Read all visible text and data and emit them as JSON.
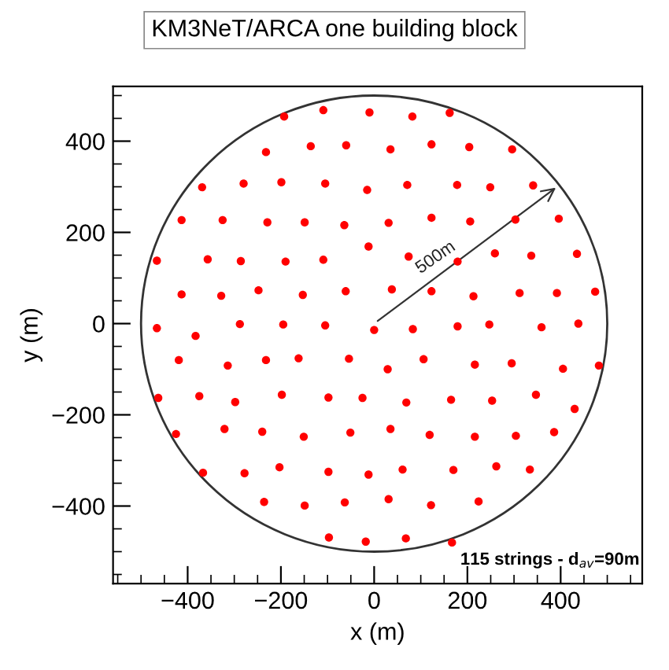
{
  "chart_data": {
    "type": "scatter",
    "title": "KM3NeT/ARCA one building block",
    "xlabel": "x (m)",
    "ylabel": "y (m)",
    "x": [
      -193,
      -109,
      -10,
      82,
      162,
      -232,
      -136,
      -60,
      35,
      123,
      204,
      296,
      -369,
      -280,
      -199,
      -105,
      -15,
      71,
      178,
      249,
      341,
      -413,
      -325,
      -229,
      -149,
      -64,
      31,
      123,
      206,
      303,
      396,
      -12,
      -466,
      -357,
      -286,
      -190,
      -109,
      74,
      179,
      259,
      337,
      435,
      -413,
      -328,
      -248,
      -153,
      -61,
      38,
      123,
      213,
      312,
      392,
      474,
      -466,
      -383,
      -288,
      -195,
      -105,
      0,
      83,
      179,
      247,
      359,
      438,
      -419,
      -314,
      -232,
      -162,
      -54,
      29,
      106,
      216,
      295,
      405,
      482,
      -463,
      -375,
      -298,
      -198,
      -98,
      -25,
      69,
      165,
      253,
      347,
      430,
      -425,
      -321,
      -240,
      -151,
      -51,
      35,
      119,
      216,
      304,
      386,
      -367,
      -278,
      -203,
      -98,
      -12,
      61,
      170,
      262,
      334,
      -236,
      -149,
      -63,
      31,
      122,
      224,
      -97,
      -18,
      68,
      167
    ],
    "series": [
      {
        "color": "#ff0000",
        "values": [
          454,
          468,
          463,
          454,
          462,
          376,
          389,
          391,
          382,
          393,
          387,
          382,
          299,
          307,
          310,
          307,
          293,
          304,
          304,
          299,
          303,
          227,
          227,
          222,
          222,
          216,
          221,
          232,
          224,
          228,
          230,
          169,
          138,
          141,
          137,
          136,
          140,
          147,
          136,
          154,
          149,
          153,
          64,
          61,
          73,
          63,
          71,
          75,
          71,
          60,
          67,
          67,
          70,
          -10,
          -27,
          -1,
          -2,
          -4,
          -14,
          -12,
          -6,
          -2,
          -8,
          0,
          -80,
          -92,
          -80,
          -76,
          -77,
          -100,
          -78,
          -90,
          -87,
          -99,
          -92,
          -163,
          -159,
          -172,
          -156,
          -162,
          -163,
          -173,
          -167,
          -169,
          -156,
          -187,
          -242,
          -231,
          -237,
          -248,
          -239,
          -231,
          -244,
          -248,
          -246,
          -238,
          -327,
          -328,
          -315,
          -325,
          -331,
          -320,
          -321,
          -313,
          -320,
          -391,
          -399,
          -392,
          -385,
          -398,
          -390,
          -469,
          -478,
          -471,
          -480
        ]
      }
    ],
    "marker": "circle",
    "xlim": [
      -560,
      575
    ],
    "ylim": [
      -570,
      520
    ],
    "xticks": [
      {
        "value": -400,
        "label": "−400"
      },
      {
        "value": -200,
        "label": "−200"
      },
      0,
      200,
      400
    ],
    "yticks": [
      {
        "value": -400,
        "label": "−400"
      },
      {
        "value": -200,
        "label": "−200"
      },
      0,
      200,
      400
    ],
    "grid": false,
    "legend": false,
    "annotations": [
      "500m",
      "115 strings - d$_{av}$=90m"
    ]
  }
}
